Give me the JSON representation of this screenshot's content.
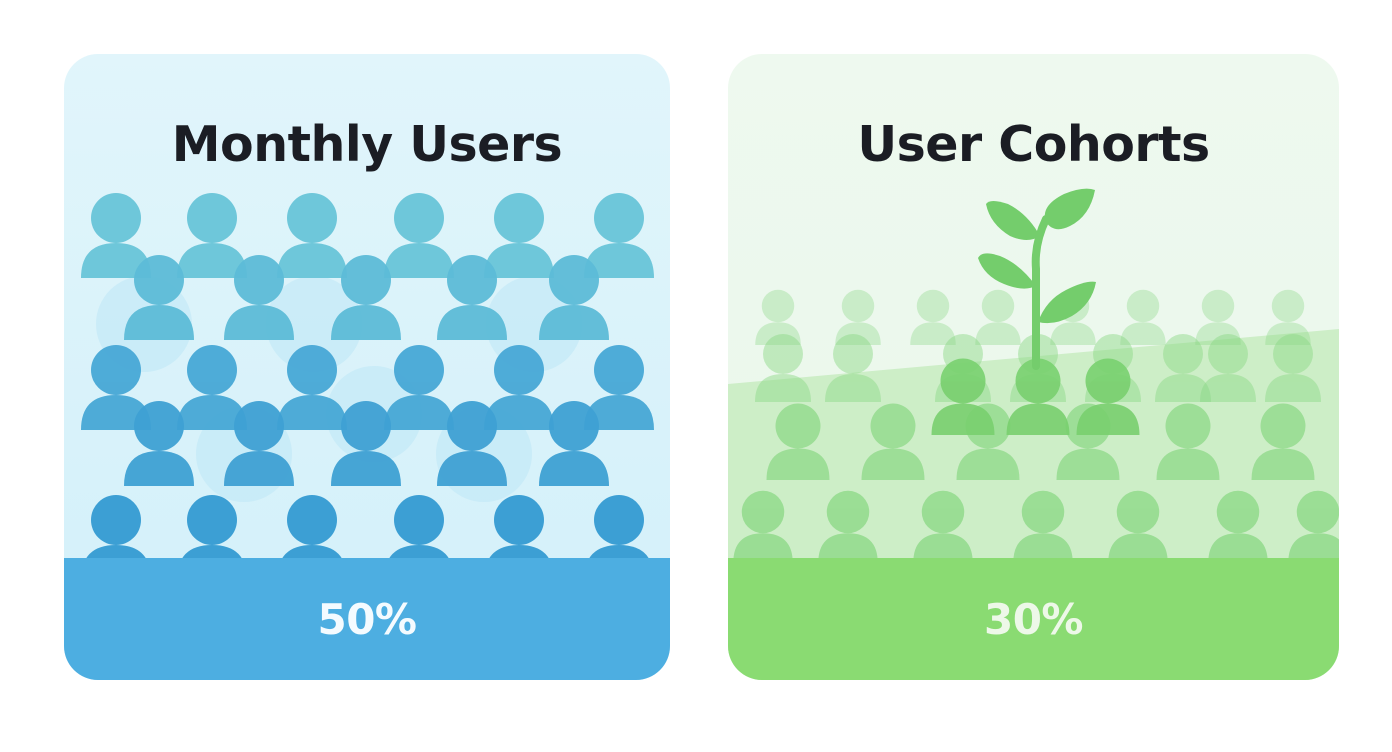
{
  "cards": [
    {
      "title": "Monthly Users",
      "stat": "50%",
      "colors": {
        "people_light": "#6ec7da",
        "people_dark": "#3c9fd4",
        "footer": "#4daee1"
      },
      "icon": "people-crowd-icon"
    },
    {
      "title": "User Cohorts",
      "stat": "30%",
      "colors": {
        "people": "#8ad884",
        "sprout": "#74cd6c",
        "footer": "#8adb72"
      },
      "icon": "sprout-icon"
    }
  ]
}
